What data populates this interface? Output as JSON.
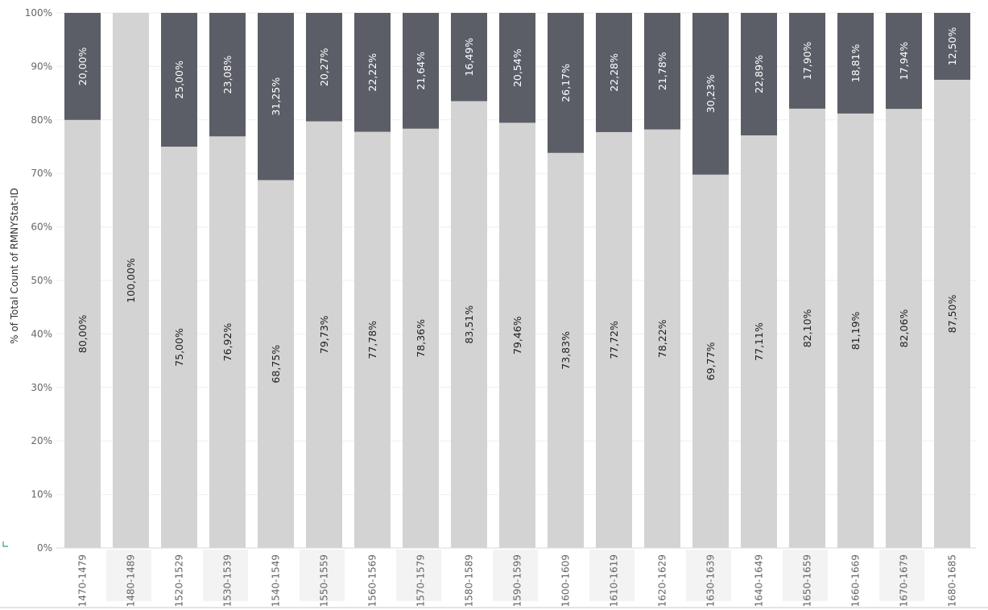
{
  "chart_data": {
    "type": "bar",
    "stacked": true,
    "normalized": true,
    "ylabel": "% of Total Count of RMNYStat-ID",
    "ylim": [
      0,
      100
    ],
    "yticks": [
      "0%",
      "10%",
      "20%",
      "30%",
      "40%",
      "50%",
      "60%",
      "70%",
      "80%",
      "90%",
      "100%"
    ],
    "categories": [
      "1470-1479",
      "1480-1489",
      "1520-1529",
      "1530-1539",
      "1540-1549",
      "1550-1559",
      "1560-1569",
      "1570-1579",
      "1580-1589",
      "1590-1599",
      "1600-1609",
      "1610-1619",
      "1620-1629",
      "1630-1639",
      "1640-1649",
      "1650-1659",
      "1660-1669",
      "1670-1679",
      "1680-1685"
    ],
    "series": [
      {
        "color": "#d3d3d3",
        "label_color": "#222222",
        "values": [
          80.0,
          100.0,
          75.0,
          76.92,
          68.75,
          79.73,
          77.78,
          78.36,
          83.51,
          79.46,
          73.83,
          77.72,
          78.22,
          69.77,
          77.11,
          82.1,
          81.19,
          82.06,
          87.5
        ],
        "labels": [
          "80,00%",
          "100,00%",
          "75,00%",
          "76,92%",
          "68,75%",
          "79,73%",
          "77,78%",
          "78,36%",
          "83,51%",
          "79,46%",
          "73,83%",
          "77,72%",
          "78,22%",
          "69,77%",
          "77,11%",
          "82,10%",
          "81,19%",
          "82,06%",
          "87,50%"
        ]
      },
      {
        "color": "#5b5e66",
        "label_color": "#ffffff",
        "values": [
          20.0,
          0,
          25.0,
          23.08,
          31.25,
          20.27,
          22.22,
          21.64,
          16.49,
          20.54,
          26.17,
          22.28,
          21.78,
          30.23,
          22.89,
          17.9,
          18.81,
          17.94,
          12.5
        ],
        "labels": [
          "20,00%",
          "",
          "25,00%",
          "23,08%",
          "31,25%",
          "20,27%",
          "22,22%",
          "21,64%",
          "16,49%",
          "20,54%",
          "26,17%",
          "22,28%",
          "21,78%",
          "30,23%",
          "22,89%",
          "17,90%",
          "18,81%",
          "17,94%",
          "12,50%"
        ]
      }
    ],
    "grid": true,
    "legend": "none"
  }
}
